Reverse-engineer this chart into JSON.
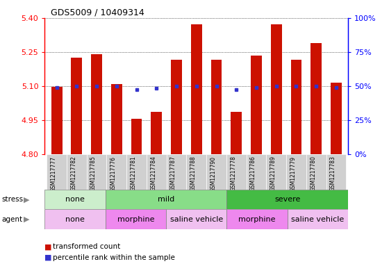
{
  "title": "GDS5009 / 10409314",
  "samples": [
    "GSM1217777",
    "GSM1217782",
    "GSM1217785",
    "GSM1217776",
    "GSM1217781",
    "GSM1217784",
    "GSM1217787",
    "GSM1217788",
    "GSM1217790",
    "GSM1217778",
    "GSM1217786",
    "GSM1217789",
    "GSM1217779",
    "GSM1217780",
    "GSM1217783"
  ],
  "transformed_counts": [
    5.095,
    5.225,
    5.24,
    5.11,
    4.955,
    4.985,
    5.215,
    5.37,
    5.215,
    4.985,
    5.235,
    5.37,
    5.215,
    5.29,
    5.115
  ],
  "percentile_ranks_val": [
    5.092,
    5.098,
    5.098,
    5.098,
    5.084,
    5.089,
    5.098,
    5.098,
    5.098,
    5.084,
    5.092,
    5.098,
    5.098,
    5.098,
    5.092
  ],
  "ymin": 4.8,
  "ymax": 5.4,
  "yticks": [
    4.8,
    4.95,
    5.1,
    5.25,
    5.4
  ],
  "right_ytick_pct": [
    0,
    25,
    50,
    75,
    100
  ],
  "bar_color": "#cc1100",
  "dot_color": "#3333cc",
  "bar_width": 0.55,
  "stress_groups": [
    {
      "label": "none",
      "start": 0,
      "end": 3,
      "color": "#cceecc"
    },
    {
      "label": "mild",
      "start": 3,
      "end": 9,
      "color": "#88dd88"
    },
    {
      "label": "severe",
      "start": 9,
      "end": 15,
      "color": "#44bb44"
    }
  ],
  "agent_groups": [
    {
      "label": "none",
      "start": 0,
      "end": 3,
      "color": "#f0c0f0"
    },
    {
      "label": "morphine",
      "start": 3,
      "end": 6,
      "color": "#ee88ee"
    },
    {
      "label": "saline vehicle",
      "start": 6,
      "end": 9,
      "color": "#f0c0f0"
    },
    {
      "label": "morphine",
      "start": 9,
      "end": 12,
      "color": "#ee88ee"
    },
    {
      "label": "saline vehicle",
      "start": 12,
      "end": 15,
      "color": "#f0c0f0"
    }
  ],
  "legend_items": [
    {
      "label": "transformed count",
      "color": "#cc1100"
    },
    {
      "label": "percentile rank within the sample",
      "color": "#3333cc"
    }
  ],
  "xlabel_bg": "#d0d0d0"
}
